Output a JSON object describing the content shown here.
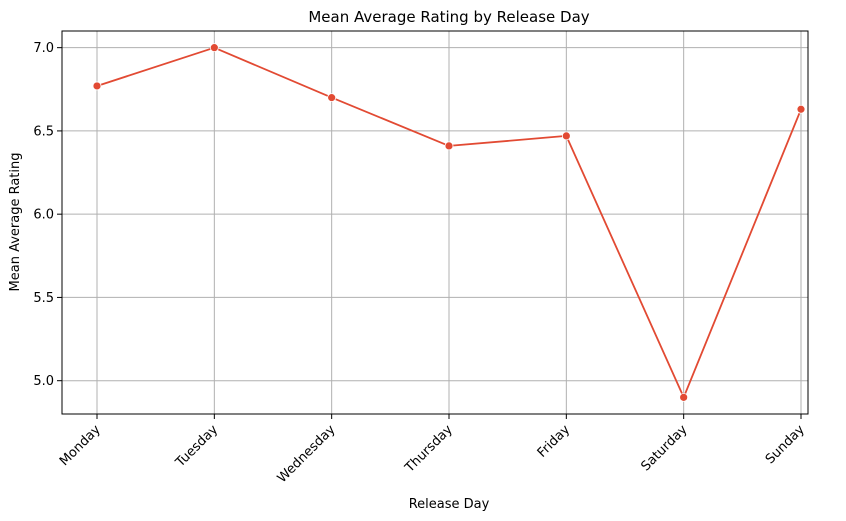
{
  "chart_data": {
    "type": "line",
    "title": "Mean Average Rating by Release Day",
    "xlabel": "Release Day",
    "ylabel": "Mean Average Rating",
    "categories": [
      "Monday",
      "Tuesday",
      "Wednesday",
      "Thursday",
      "Friday",
      "Saturday",
      "Sunday"
    ],
    "series": [
      {
        "values": [
          6.77,
          7.0,
          6.7,
          6.41,
          6.47,
          4.9,
          6.63
        ],
        "color": "#e24a33"
      }
    ],
    "yticks": [
      5.0,
      5.5,
      6.0,
      6.5,
      7.0
    ],
    "ytick_labels": [
      "5.0",
      "5.5",
      "6.0",
      "6.5",
      "7.0"
    ],
    "ylim": [
      4.8,
      7.1
    ],
    "grid": true,
    "x_tick_rotation": 45
  }
}
